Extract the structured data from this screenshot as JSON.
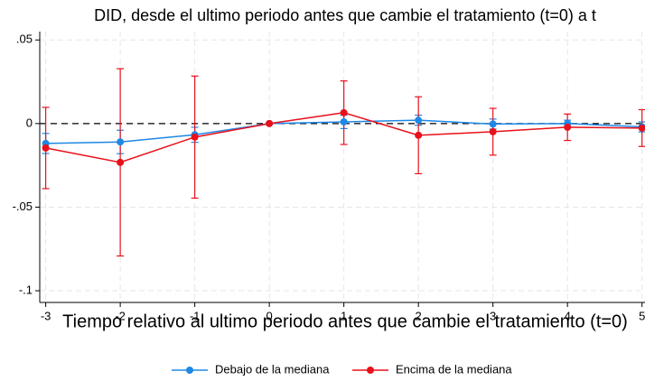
{
  "chart_data": {
    "type": "line",
    "title": "DID, desde el ultimo periodo antes que cambie el tratamiento (t=0) a t",
    "x_label": "Tiempo relativo al ultimo periodo antes que cambie el tratamiento (t=0)",
    "x": [
      -3,
      -2,
      -1,
      0,
      1,
      2,
      3,
      4,
      5
    ],
    "series": [
      {
        "name": "Debajo de la mediana",
        "color": "#1e88e5",
        "values": [
          -0.0119,
          -0.011,
          -0.0067,
          0,
          0.001,
          0.002,
          -0.0003,
          0,
          -0.002
        ],
        "errors": [
          0.006,
          0.007,
          0.0045,
          0,
          0.004,
          0.003,
          0.003,
          0.002,
          0.003
        ]
      },
      {
        "name": "Encima de la mediana",
        "color": "#e8101b",
        "values": [
          -0.0146,
          -0.0232,
          -0.0081,
          0,
          0.0065,
          -0.007,
          -0.0049,
          -0.0022,
          -0.0027
        ],
        "errors": [
          0.0243,
          0.056,
          0.0365,
          0,
          0.019,
          0.023,
          0.014,
          0.0079,
          0.011
        ]
      }
    ],
    "xlim": [
      -3.08,
      5.04
    ],
    "xticks": [
      -3,
      -2,
      -1,
      0,
      1,
      2,
      3,
      4,
      5
    ],
    "ylim": [
      -0.107,
      0.055
    ],
    "yticks": [
      {
        "value": -0.1,
        "label": "-.1"
      },
      {
        "value": -0.05,
        "label": "-.05"
      },
      0,
      {
        "value": 0.05,
        "label": ".05"
      }
    ],
    "grid": true,
    "reference_line": 0,
    "legend": "bottom"
  }
}
